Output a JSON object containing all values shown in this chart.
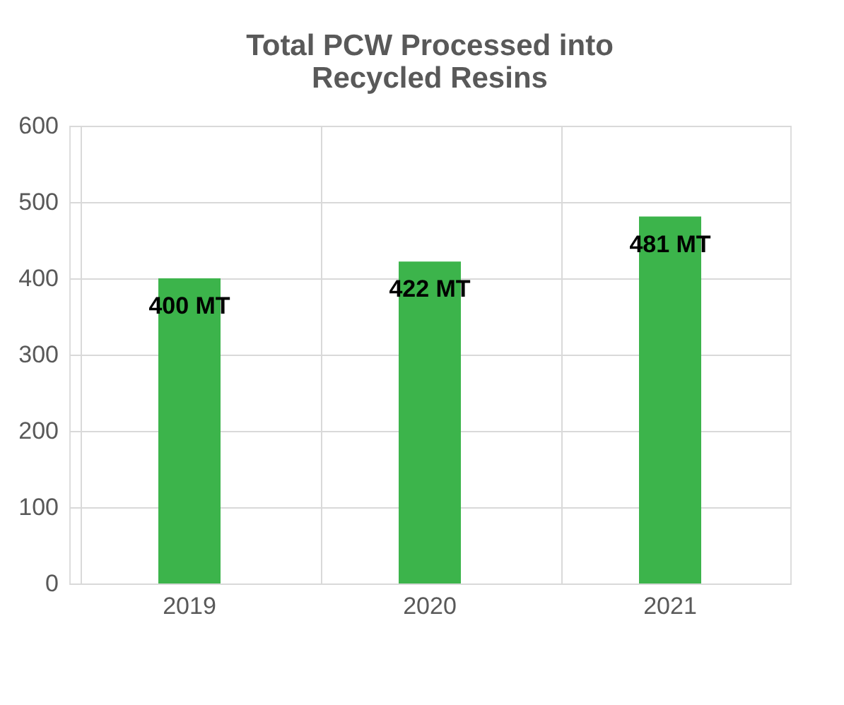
{
  "chart_data": {
    "type": "bar",
    "title": [
      "Total PCW Processed into",
      "Recycled Resins"
    ],
    "categories": [
      "2019",
      "2020",
      "2021"
    ],
    "values": [
      400,
      422,
      481
    ],
    "value_labels": [
      "400 MT",
      "422 MT",
      "481 MT"
    ],
    "color": "#3cb44b",
    "ylim": [
      0,
      600
    ],
    "yticks": [
      0,
      100,
      200,
      300,
      400,
      500,
      600
    ],
    "grid": true
  }
}
